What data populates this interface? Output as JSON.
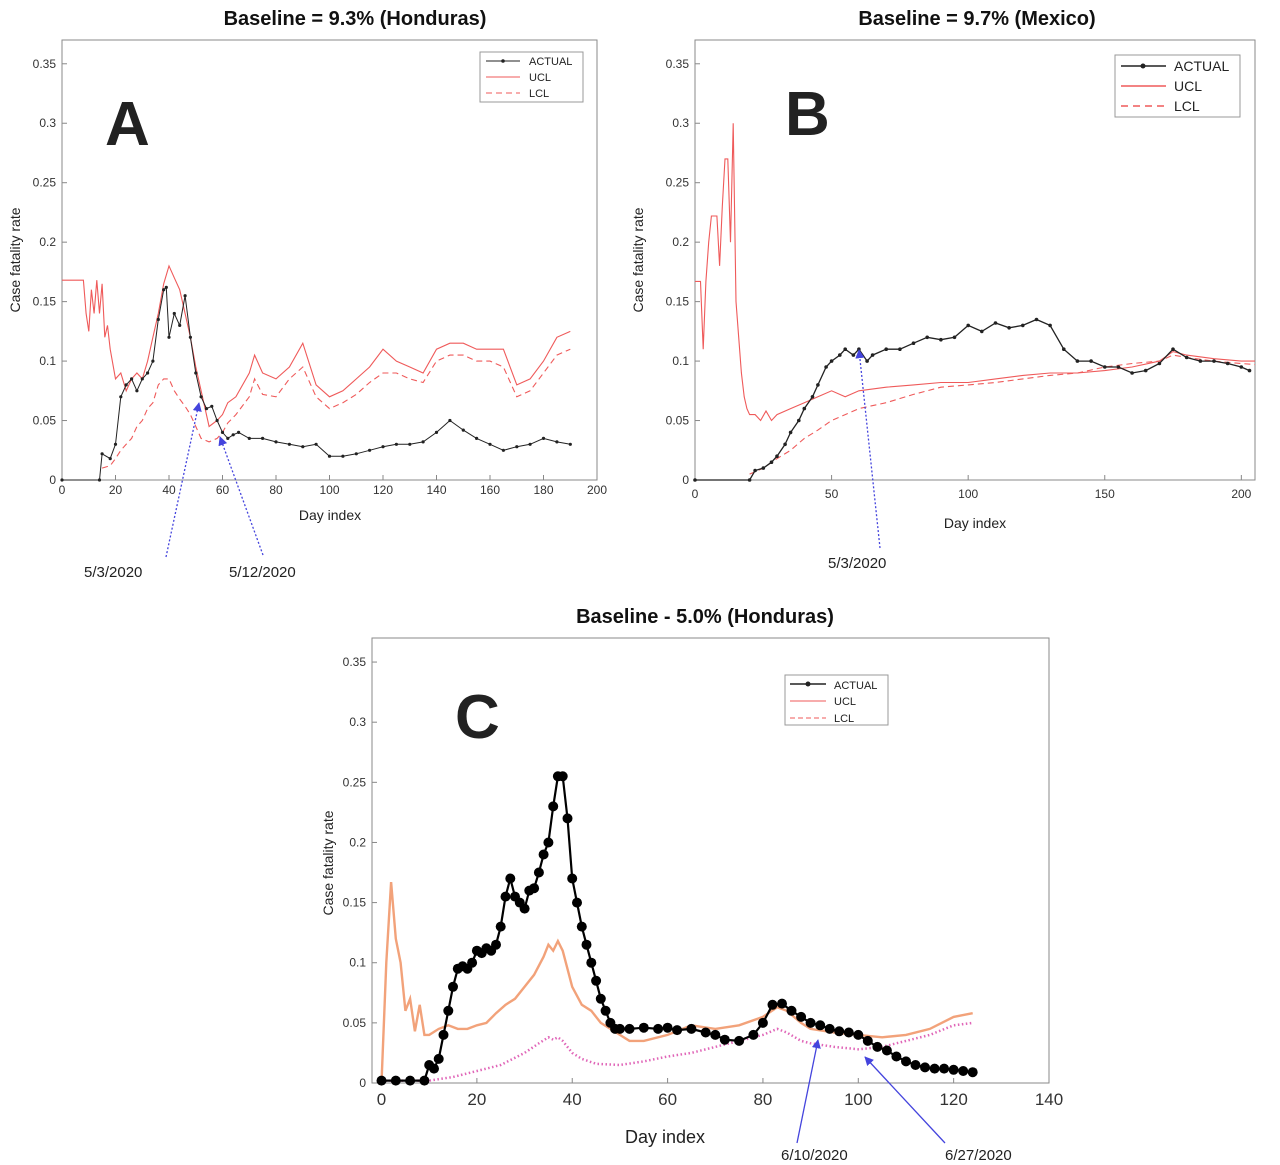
{
  "chart_data": [
    {
      "panel": "A",
      "type": "line",
      "title": "Baseline = 9.3% (Honduras)",
      "xlabel": "Day index",
      "ylabel": "Case fatality rate",
      "xlim": [
        0,
        200
      ],
      "ylim": [
        0,
        0.37
      ],
      "xticks": [
        0,
        20,
        40,
        60,
        80,
        100,
        120,
        140,
        160,
        180,
        200
      ],
      "yticks": [
        0,
        0.05,
        0.1,
        0.15,
        0.2,
        0.25,
        0.3,
        0.35
      ],
      "legend_position": "top-right",
      "series": [
        {
          "name": "ACTUAL",
          "color": "#222222",
          "style": "solid-marker",
          "x": [
            0,
            14,
            15,
            18,
            20,
            22,
            24,
            26,
            28,
            30,
            32,
            34,
            36,
            38,
            39,
            40,
            42,
            44,
            46,
            48,
            50,
            52,
            54,
            56,
            58,
            60,
            62,
            64,
            66,
            70,
            75,
            80,
            85,
            90,
            95,
            100,
            105,
            110,
            115,
            120,
            125,
            130,
            135,
            140,
            145,
            150,
            155,
            160,
            165,
            170,
            175,
            180,
            185,
            190
          ],
          "y": [
            0,
            0,
            0.022,
            0.018,
            0.03,
            0.07,
            0.08,
            0.085,
            0.075,
            0.085,
            0.09,
            0.1,
            0.135,
            0.16,
            0.162,
            0.12,
            0.14,
            0.13,
            0.155,
            0.12,
            0.09,
            0.07,
            0.06,
            0.062,
            0.05,
            0.04,
            0.035,
            0.038,
            0.04,
            0.035,
            0.035,
            0.032,
            0.03,
            0.028,
            0.03,
            0.02,
            0.02,
            0.022,
            0.025,
            0.028,
            0.03,
            0.03,
            0.032,
            0.04,
            0.05,
            0.042,
            0.035,
            0.03,
            0.025,
            0.028,
            0.03,
            0.035,
            0.032,
            0.03
          ]
        },
        {
          "name": "UCL",
          "color": "#ef5a5a",
          "style": "solid",
          "x": [
            0,
            5,
            8,
            9,
            10,
            11,
            12,
            13,
            14,
            15,
            16,
            17,
            18,
            20,
            22,
            24,
            26,
            28,
            30,
            32,
            34,
            36,
            38,
            40,
            42,
            44,
            46,
            48,
            50,
            52,
            55,
            58,
            60,
            62,
            65,
            70,
            72,
            75,
            80,
            85,
            90,
            95,
            100,
            105,
            110,
            115,
            120,
            125,
            130,
            135,
            140,
            145,
            150,
            155,
            160,
            165,
            170,
            175,
            180,
            185,
            190
          ],
          "y": [
            0.168,
            0.168,
            0.168,
            0.14,
            0.125,
            0.16,
            0.14,
            0.168,
            0.14,
            0.165,
            0.12,
            0.13,
            0.11,
            0.085,
            0.09,
            0.075,
            0.085,
            0.09,
            0.085,
            0.1,
            0.12,
            0.14,
            0.165,
            0.18,
            0.17,
            0.16,
            0.14,
            0.12,
            0.095,
            0.075,
            0.045,
            0.05,
            0.055,
            0.065,
            0.07,
            0.09,
            0.105,
            0.09,
            0.085,
            0.095,
            0.115,
            0.08,
            0.07,
            0.075,
            0.085,
            0.095,
            0.11,
            0.1,
            0.095,
            0.09,
            0.11,
            0.115,
            0.115,
            0.11,
            0.11,
            0.11,
            0.08,
            0.085,
            0.1,
            0.12,
            0.125
          ]
        },
        {
          "name": "LCL",
          "color": "#ef5a5a",
          "style": "dashed",
          "x": [
            15,
            18,
            20,
            22,
            24,
            26,
            28,
            30,
            32,
            34,
            36,
            38,
            40,
            42,
            44,
            46,
            48,
            50,
            52,
            55,
            58,
            60,
            62,
            65,
            70,
            72,
            75,
            80,
            85,
            90,
            95,
            100,
            105,
            110,
            115,
            120,
            125,
            130,
            135,
            140,
            145,
            150,
            155,
            160,
            165,
            170,
            175,
            180,
            185,
            190
          ],
          "y": [
            0.01,
            0.012,
            0.018,
            0.025,
            0.03,
            0.035,
            0.045,
            0.05,
            0.06,
            0.065,
            0.08,
            0.085,
            0.085,
            0.075,
            0.068,
            0.062,
            0.055,
            0.045,
            0.035,
            0.032,
            0.035,
            0.04,
            0.048,
            0.055,
            0.07,
            0.085,
            0.072,
            0.07,
            0.085,
            0.095,
            0.07,
            0.06,
            0.065,
            0.072,
            0.082,
            0.09,
            0.09,
            0.085,
            0.082,
            0.1,
            0.105,
            0.105,
            0.1,
            0.1,
            0.095,
            0.07,
            0.075,
            0.09,
            0.105,
            0.11
          ]
        }
      ],
      "annotations": [
        {
          "text": "5/3/2020",
          "x": 53,
          "y": 0.065
        },
        {
          "text": "5/12/2020",
          "x": 62,
          "y": 0.035
        }
      ]
    },
    {
      "panel": "B",
      "type": "line",
      "title": "Baseline = 9.7% (Mexico)",
      "xlabel": "Day index",
      "ylabel": "Case fatality rate",
      "xlim": [
        0,
        205
      ],
      "ylim": [
        0,
        0.37
      ],
      "xticks": [
        0,
        50,
        100,
        150,
        200
      ],
      "yticks": [
        0,
        0.05,
        0.1,
        0.15,
        0.2,
        0.25,
        0.3,
        0.35
      ],
      "legend_position": "top-right",
      "series": [
        {
          "name": "ACTUAL",
          "color": "#222222",
          "style": "solid-marker",
          "x": [
            0,
            20,
            22,
            25,
            28,
            30,
            33,
            35,
            38,
            40,
            43,
            45,
            48,
            50,
            53,
            55,
            58,
            60,
            63,
            65,
            70,
            75,
            80,
            85,
            90,
            95,
            100,
            105,
            110,
            115,
            120,
            125,
            130,
            135,
            140,
            145,
            150,
            155,
            160,
            165,
            170,
            175,
            180,
            185,
            190,
            195,
            200,
            203
          ],
          "y": [
            0,
            0,
            0.008,
            0.01,
            0.015,
            0.02,
            0.03,
            0.04,
            0.05,
            0.06,
            0.07,
            0.08,
            0.095,
            0.1,
            0.105,
            0.11,
            0.105,
            0.11,
            0.1,
            0.105,
            0.11,
            0.11,
            0.115,
            0.12,
            0.118,
            0.12,
            0.13,
            0.125,
            0.132,
            0.128,
            0.13,
            0.135,
            0.13,
            0.11,
            0.1,
            0.1,
            0.095,
            0.095,
            0.09,
            0.092,
            0.098,
            0.11,
            0.103,
            0.1,
            0.1,
            0.098,
            0.095,
            0.092
          ]
        },
        {
          "name": "UCL",
          "color": "#ef5a5a",
          "style": "solid",
          "x": [
            0,
            2,
            3,
            4,
            5,
            6,
            8,
            9,
            10,
            11,
            12,
            13,
            14,
            15,
            16,
            17,
            18,
            19,
            20,
            22,
            24,
            26,
            28,
            30,
            35,
            40,
            45,
            50,
            55,
            60,
            70,
            80,
            90,
            100,
            110,
            120,
            130,
            140,
            150,
            160,
            170,
            175,
            180,
            190,
            200,
            205
          ],
          "y": [
            0.167,
            0.167,
            0.11,
            0.167,
            0.2,
            0.222,
            0.222,
            0.18,
            0.23,
            0.27,
            0.27,
            0.2,
            0.3,
            0.15,
            0.12,
            0.09,
            0.07,
            0.06,
            0.055,
            0.055,
            0.05,
            0.058,
            0.05,
            0.055,
            0.06,
            0.065,
            0.07,
            0.075,
            0.07,
            0.075,
            0.078,
            0.08,
            0.082,
            0.082,
            0.085,
            0.088,
            0.09,
            0.09,
            0.092,
            0.095,
            0.1,
            0.108,
            0.105,
            0.102,
            0.1,
            0.1
          ]
        },
        {
          "name": "LCL",
          "color": "#ef5a5a",
          "style": "dashed",
          "x": [
            20,
            25,
            30,
            35,
            40,
            45,
            50,
            55,
            60,
            70,
            80,
            90,
            100,
            110,
            120,
            130,
            140,
            150,
            160,
            170,
            175,
            180,
            190,
            200,
            205
          ],
          "y": [
            0.005,
            0.01,
            0.018,
            0.025,
            0.035,
            0.042,
            0.05,
            0.055,
            0.06,
            0.065,
            0.072,
            0.078,
            0.08,
            0.082,
            0.085,
            0.088,
            0.09,
            0.095,
            0.098,
            0.1,
            0.105,
            0.103,
            0.1,
            0.098,
            0.097
          ]
        }
      ],
      "annotations": [
        {
          "text": "5/3/2020",
          "x": 60,
          "y": 0.11
        }
      ]
    },
    {
      "panel": "C",
      "type": "line",
      "title": "Baseline - 5.0% (Honduras)",
      "xlabel": "Day index",
      "ylabel": "Case fatality rate",
      "xlim": [
        -2,
        140
      ],
      "ylim": [
        0,
        0.37
      ],
      "xticks": [
        0,
        20,
        40,
        60,
        80,
        100,
        120,
        140
      ],
      "yticks": [
        0,
        0.05,
        0.1,
        0.15,
        0.2,
        0.25,
        0.3,
        0.35
      ],
      "legend_position": "top-right",
      "series": [
        {
          "name": "ACTUAL",
          "color": "#000000",
          "style": "solid-marker",
          "x": [
            0,
            3,
            6,
            9,
            10,
            11,
            12,
            13,
            14,
            15,
            16,
            17,
            18,
            19,
            20,
            21,
            22,
            23,
            24,
            25,
            26,
            27,
            28,
            29,
            30,
            31,
            32,
            33,
            34,
            35,
            36,
            37,
            38,
            39,
            40,
            41,
            42,
            43,
            44,
            45,
            46,
            47,
            48,
            49,
            50,
            52,
            55,
            58,
            60,
            62,
            65,
            68,
            70,
            72,
            75,
            78,
            80,
            82,
            84,
            86,
            88,
            90,
            92,
            94,
            96,
            98,
            100,
            102,
            104,
            106,
            108,
            110,
            112,
            114,
            116,
            118,
            120,
            122,
            124
          ],
          "y": [
            0.002,
            0.002,
            0.002,
            0.002,
            0.015,
            0.012,
            0.02,
            0.04,
            0.06,
            0.08,
            0.095,
            0.097,
            0.095,
            0.1,
            0.11,
            0.108,
            0.112,
            0.11,
            0.115,
            0.13,
            0.155,
            0.17,
            0.155,
            0.15,
            0.145,
            0.16,
            0.162,
            0.175,
            0.19,
            0.2,
            0.23,
            0.255,
            0.255,
            0.22,
            0.17,
            0.15,
            0.13,
            0.115,
            0.1,
            0.085,
            0.07,
            0.06,
            0.05,
            0.045,
            0.045,
            0.045,
            0.046,
            0.045,
            0.046,
            0.044,
            0.045,
            0.042,
            0.04,
            0.036,
            0.035,
            0.04,
            0.05,
            0.065,
            0.066,
            0.06,
            0.055,
            0.05,
            0.048,
            0.045,
            0.043,
            0.042,
            0.04,
            0.035,
            0.03,
            0.027,
            0.022,
            0.018,
            0.015,
            0.013,
            0.012,
            0.012,
            0.011,
            0.01,
            0.009
          ]
        },
        {
          "name": "UCL",
          "color": "#f2a27a",
          "style": "solid",
          "x": [
            0,
            1,
            2,
            3,
            4,
            5,
            6,
            7,
            8,
            9,
            10,
            12,
            14,
            16,
            18,
            20,
            22,
            24,
            26,
            28,
            30,
            32,
            34,
            35,
            36,
            37,
            38,
            40,
            42,
            44,
            46,
            48,
            50,
            52,
            55,
            60,
            65,
            70,
            75,
            80,
            83,
            85,
            88,
            90,
            95,
            100,
            105,
            110,
            115,
            120,
            124
          ],
          "y": [
            0,
            0.1,
            0.167,
            0.12,
            0.1,
            0.06,
            0.07,
            0.043,
            0.065,
            0.04,
            0.04,
            0.045,
            0.048,
            0.045,
            0.045,
            0.048,
            0.05,
            0.058,
            0.065,
            0.07,
            0.08,
            0.09,
            0.105,
            0.115,
            0.11,
            0.118,
            0.11,
            0.08,
            0.065,
            0.06,
            0.05,
            0.045,
            0.04,
            0.035,
            0.035,
            0.04,
            0.048,
            0.045,
            0.048,
            0.055,
            0.063,
            0.06,
            0.05,
            0.045,
            0.042,
            0.04,
            0.038,
            0.04,
            0.045,
            0.055,
            0.058
          ]
        },
        {
          "name": "LCL",
          "color": "#e066b8",
          "style": "dotted",
          "x": [
            0,
            10,
            15,
            20,
            25,
            30,
            33,
            35,
            36,
            37,
            38,
            40,
            42,
            45,
            50,
            55,
            60,
            65,
            70,
            75,
            80,
            83,
            85,
            88,
            90,
            95,
            100,
            105,
            110,
            115,
            120,
            124
          ],
          "y": [
            0.002,
            0.002,
            0.005,
            0.01,
            0.015,
            0.025,
            0.033,
            0.038,
            0.036,
            0.038,
            0.035,
            0.025,
            0.02,
            0.016,
            0.015,
            0.018,
            0.022,
            0.025,
            0.03,
            0.035,
            0.04,
            0.045,
            0.042,
            0.035,
            0.033,
            0.03,
            0.028,
            0.03,
            0.035,
            0.04,
            0.048,
            0.05
          ]
        }
      ],
      "annotations": [
        {
          "text": "6/10/2020",
          "x": 93,
          "y": 0.038
        },
        {
          "text": "6/27/2020",
          "x": 100,
          "y": 0.036
        }
      ]
    }
  ],
  "labels": {
    "panel_a": "A",
    "panel_b": "B",
    "panel_c": "C"
  }
}
